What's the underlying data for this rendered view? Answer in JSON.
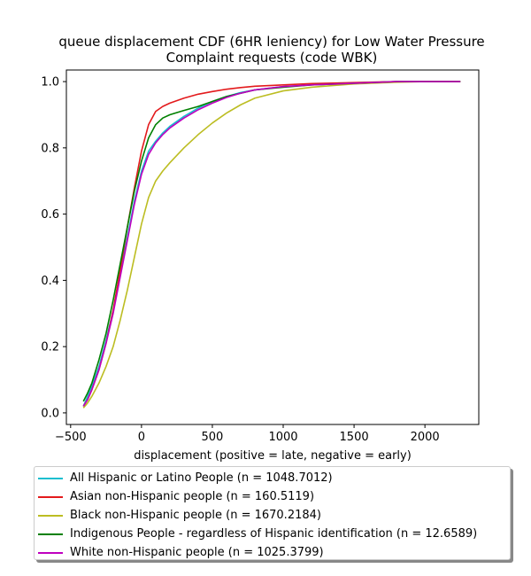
{
  "chart_data": {
    "type": "line",
    "title_lines": [
      "queue displacement CDF (6HR leniency) for Low Water Pressure",
      "Complaint  requests (code WBK)"
    ],
    "xlabel": "displacement (positive = late, negative = early)",
    "ylabel": "",
    "xlim": [
      -530,
      2380
    ],
    "ylim": [
      -0.035,
      1.035
    ],
    "xticks": [
      -500,
      0,
      500,
      1000,
      1500,
      2000
    ],
    "xtick_labels": [
      "−500",
      "0",
      "500",
      "1000",
      "1500",
      "2000"
    ],
    "yticks": [
      0.0,
      0.2,
      0.4,
      0.6,
      0.8,
      1.0
    ],
    "ytick_labels": [
      "0.0",
      "0.2",
      "0.4",
      "0.6",
      "0.8",
      "1.0"
    ],
    "grid": false,
    "legend_position": "below",
    "series": [
      {
        "name": "All Hispanic or Latino People (n = 1048.7012)",
        "color": "#17becf",
        "x": [
          -410,
          -380,
          -350,
          -300,
          -250,
          -200,
          -150,
          -100,
          -50,
          0,
          50,
          100,
          150,
          200,
          300,
          400,
          500,
          600,
          700,
          800,
          1000,
          1200,
          1500,
          1800,
          2000,
          2250
        ],
        "y": [
          0.02,
          0.05,
          0.08,
          0.14,
          0.22,
          0.31,
          0.42,
          0.53,
          0.64,
          0.73,
          0.79,
          0.82,
          0.845,
          0.865,
          0.895,
          0.92,
          0.94,
          0.955,
          0.967,
          0.975,
          0.985,
          0.99,
          0.995,
          1.0,
          1.0,
          1.0
        ]
      },
      {
        "name": "Asian non-Hispanic people (n = 160.5119)",
        "color": "#e31a1c",
        "x": [
          -410,
          -380,
          -350,
          -300,
          -250,
          -200,
          -150,
          -100,
          -50,
          0,
          50,
          100,
          150,
          200,
          300,
          400,
          500,
          600,
          700,
          800,
          1000,
          1200,
          1500,
          1800,
          2000,
          2250
        ],
        "y": [
          0.02,
          0.04,
          0.07,
          0.13,
          0.21,
          0.31,
          0.43,
          0.56,
          0.68,
          0.79,
          0.87,
          0.91,
          0.925,
          0.935,
          0.95,
          0.962,
          0.97,
          0.977,
          0.982,
          0.986,
          0.99,
          0.994,
          0.997,
          1.0,
          1.0,
          1.0
        ]
      },
      {
        "name": "Black non-Hispanic people (n = 1670.2184)",
        "color": "#bcbd22",
        "x": [
          -410,
          -380,
          -350,
          -300,
          -250,
          -200,
          -150,
          -100,
          -50,
          0,
          50,
          100,
          150,
          200,
          300,
          400,
          500,
          600,
          700,
          800,
          1000,
          1200,
          1500,
          1800,
          2000,
          2250
        ],
        "y": [
          0.015,
          0.03,
          0.05,
          0.09,
          0.14,
          0.2,
          0.28,
          0.37,
          0.47,
          0.57,
          0.65,
          0.7,
          0.73,
          0.755,
          0.8,
          0.84,
          0.875,
          0.905,
          0.93,
          0.95,
          0.972,
          0.983,
          0.993,
          0.998,
          1.0,
          1.0
        ]
      },
      {
        "name": "Indigenous People - regardless of Hispanic identification (n = 12.6589)",
        "color": "#008000",
        "x": [
          -410,
          -380,
          -350,
          -300,
          -250,
          -200,
          -150,
          -100,
          -50,
          0,
          50,
          100,
          150,
          200,
          300,
          400,
          500,
          600,
          700,
          800,
          1000,
          1200,
          1500,
          1800,
          2000,
          2250
        ],
        "y": [
          0.035,
          0.06,
          0.09,
          0.16,
          0.24,
          0.34,
          0.45,
          0.56,
          0.67,
          0.76,
          0.83,
          0.87,
          0.89,
          0.9,
          0.913,
          0.925,
          0.94,
          0.955,
          0.965,
          0.975,
          0.983,
          0.99,
          0.995,
          1.0,
          1.0,
          1.0
        ]
      },
      {
        "name": "White non-Hispanic people (n = 1025.3799)",
        "color": "#bf00bf",
        "x": [
          -410,
          -380,
          -350,
          -300,
          -250,
          -200,
          -150,
          -100,
          -50,
          0,
          50,
          100,
          150,
          200,
          300,
          400,
          500,
          600,
          700,
          800,
          1000,
          1200,
          1500,
          1800,
          2000,
          2250
        ],
        "y": [
          0.02,
          0.04,
          0.07,
          0.13,
          0.21,
          0.3,
          0.41,
          0.52,
          0.63,
          0.72,
          0.78,
          0.815,
          0.84,
          0.86,
          0.89,
          0.915,
          0.935,
          0.952,
          0.965,
          0.975,
          0.985,
          0.99,
          0.995,
          1.0,
          1.0,
          1.0
        ]
      }
    ]
  }
}
